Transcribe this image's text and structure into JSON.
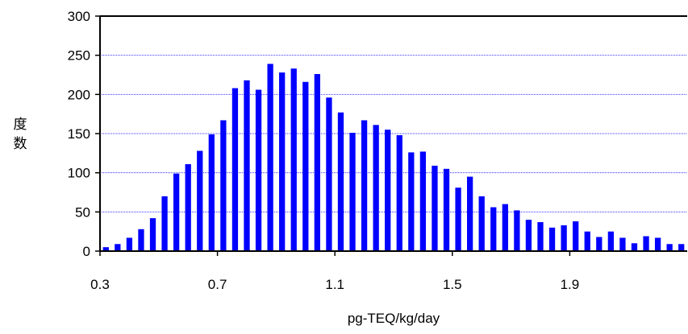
{
  "chart_data": {
    "type": "bar",
    "title": "",
    "xlabel": "pg-TEQ/kg/day",
    "ylabel": "度数",
    "ylim": [
      0,
      300
    ],
    "yticks": [
      0,
      50,
      100,
      150,
      200,
      250,
      300
    ],
    "xlim": [
      0.3,
      2.3
    ],
    "xticks": [
      0.3,
      0.7,
      1.1,
      1.5,
      1.9
    ],
    "xtick_labels": [
      "0.3",
      "0.7",
      "1.1",
      "1.5",
      "1.9"
    ],
    "bar_width": 0.02,
    "grid": "horizontal dotted",
    "bar_color": "#0000ff",
    "grid_color": "#3333ff",
    "x": [
      0.32,
      0.36,
      0.4,
      0.44,
      0.48,
      0.52,
      0.56,
      0.6,
      0.64,
      0.68,
      0.72,
      0.76,
      0.8,
      0.84,
      0.88,
      0.92,
      0.96,
      1.0,
      1.04,
      1.08,
      1.12,
      1.16,
      1.2,
      1.24,
      1.28,
      1.32,
      1.36,
      1.4,
      1.44,
      1.48,
      1.52,
      1.56,
      1.6,
      1.64,
      1.68,
      1.72,
      1.76,
      1.8,
      1.84,
      1.88,
      1.92,
      1.96,
      2.0,
      2.04,
      2.08,
      2.12,
      2.16,
      2.2,
      2.24,
      2.28
    ],
    "values": [
      5,
      9,
      17,
      28,
      42,
      70,
      99,
      111,
      128,
      149,
      167,
      208,
      218,
      206,
      239,
      228,
      233,
      216,
      226,
      196,
      177,
      151,
      167,
      161,
      155,
      148,
      126,
      127,
      109,
      105,
      81,
      95,
      70,
      56,
      60,
      52,
      40,
      37,
      30,
      33,
      38,
      25,
      18,
      25,
      17,
      10,
      19,
      17,
      9,
      9
    ]
  }
}
